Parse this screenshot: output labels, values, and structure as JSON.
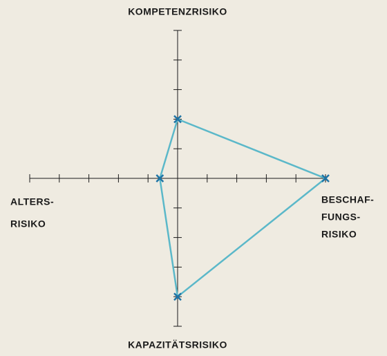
{
  "chart_data": {
    "type": "radar",
    "axes": [
      {
        "label": [
          "KOMPETENZRISIKO"
        ],
        "value": 2
      },
      {
        "label": [
          "BESCHAF-",
          "FUNGS-",
          "RISIKO"
        ],
        "value": 5
      },
      {
        "label": [
          "KAPAZITÄTSRISIKO"
        ],
        "value": 4
      },
      {
        "label": [
          "ALTERS-",
          "RISIKO"
        ],
        "value": 0.6
      }
    ],
    "rlim": [
      0,
      5
    ],
    "rticks": [
      1,
      2,
      3,
      4,
      5
    ],
    "line_color": "#5bb8c9",
    "marker_color": "#1f74a6",
    "axis_color": "#1a1a1a"
  }
}
